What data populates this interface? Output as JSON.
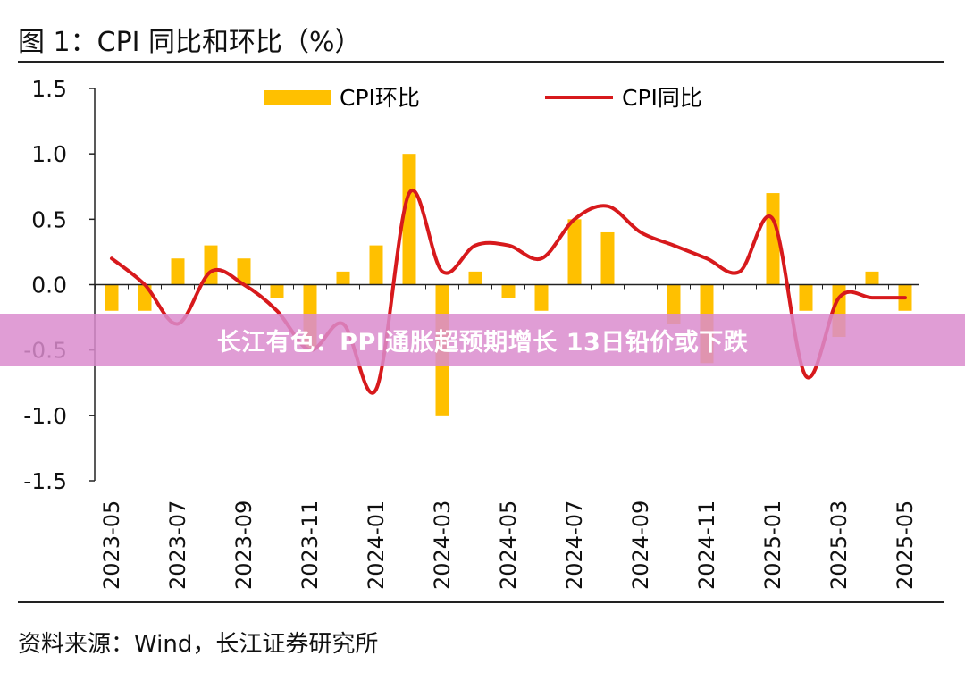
{
  "figure": {
    "title": "图 1：CPI 同比和环比（%）",
    "source": "资料来源：Wind，长江证券研究所"
  },
  "banner": {
    "text": "长江有色：PPI通胀超预期增长 13日铅价或下跌"
  },
  "colors": {
    "bar": "#FFC000",
    "line": "#D7191C",
    "banner": "#DA8CCE"
  },
  "chart_data": {
    "type": "bar+line",
    "categories": [
      "2023-05",
      "2023-06",
      "2023-07",
      "2023-08",
      "2023-09",
      "2023-10",
      "2023-11",
      "2023-12",
      "2024-01",
      "2024-02",
      "2024-03",
      "2024-04",
      "2024-05",
      "2024-06",
      "2024-07",
      "2024-08",
      "2024-09",
      "2024-10",
      "2024-11",
      "2024-12",
      "2025-01",
      "2025-02",
      "2025-03",
      "2025-04",
      "2025-05"
    ],
    "tick_labels": [
      "2023-05",
      "2023-07",
      "2023-09",
      "2023-11",
      "2024-01",
      "2024-03",
      "2024-05",
      "2024-07",
      "2024-09",
      "2024-11",
      "2025-01",
      "2025-03",
      "2025-05"
    ],
    "series": [
      {
        "name": "CPI环比",
        "type": "bar",
        "values": [
          -0.2,
          -0.2,
          0.2,
          0.3,
          0.2,
          -0.1,
          -0.5,
          0.1,
          0.3,
          1.0,
          -1.0,
          0.1,
          -0.1,
          -0.2,
          0.5,
          0.4,
          0.0,
          -0.3,
          -0.6,
          0.0,
          0.7,
          -0.2,
          -0.4,
          0.1,
          -0.2
        ]
      },
      {
        "name": "CPI同比",
        "type": "line",
        "values": [
          0.2,
          0.0,
          -0.3,
          0.1,
          0.0,
          -0.2,
          -0.5,
          -0.3,
          -0.8,
          0.7,
          0.1,
          0.3,
          0.3,
          0.2,
          0.5,
          0.6,
          0.4,
          0.3,
          0.2,
          0.1,
          0.5,
          -0.7,
          -0.1,
          -0.1,
          -0.1
        ]
      }
    ],
    "ylim": [
      -1.5,
      1.5
    ],
    "yticks": [
      "1.5",
      "1.0",
      "0.5",
      "0.0",
      "-0.5",
      "-1.0",
      "-1.5"
    ],
    "legend": "top"
  }
}
